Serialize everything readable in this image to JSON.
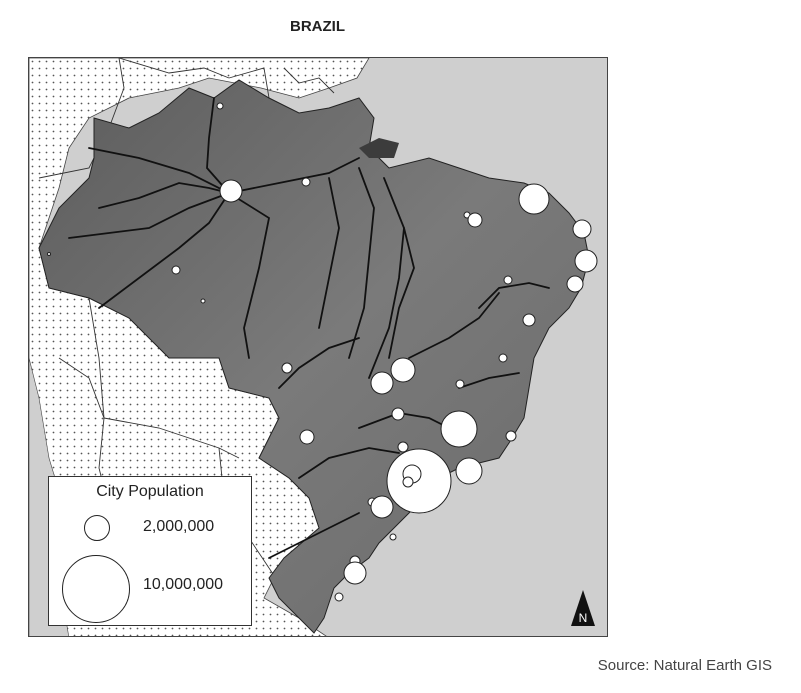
{
  "map": {
    "title": "BRAZIL",
    "source": "Source: Natural Earth GIS",
    "north_label": "N",
    "colors": {
      "ocean": "#cfcfcf",
      "brazil_relief": "#6e6e6e",
      "neighbors": "#ffffff",
      "dots": "#555555",
      "rivers": "#111111",
      "cities": "#ffffff"
    }
  },
  "legend": {
    "title": "City Population",
    "items": [
      {
        "label": "2,000,000",
        "value": 2000000
      },
      {
        "label": "10,000,000",
        "value": 10000000
      }
    ]
  }
}
